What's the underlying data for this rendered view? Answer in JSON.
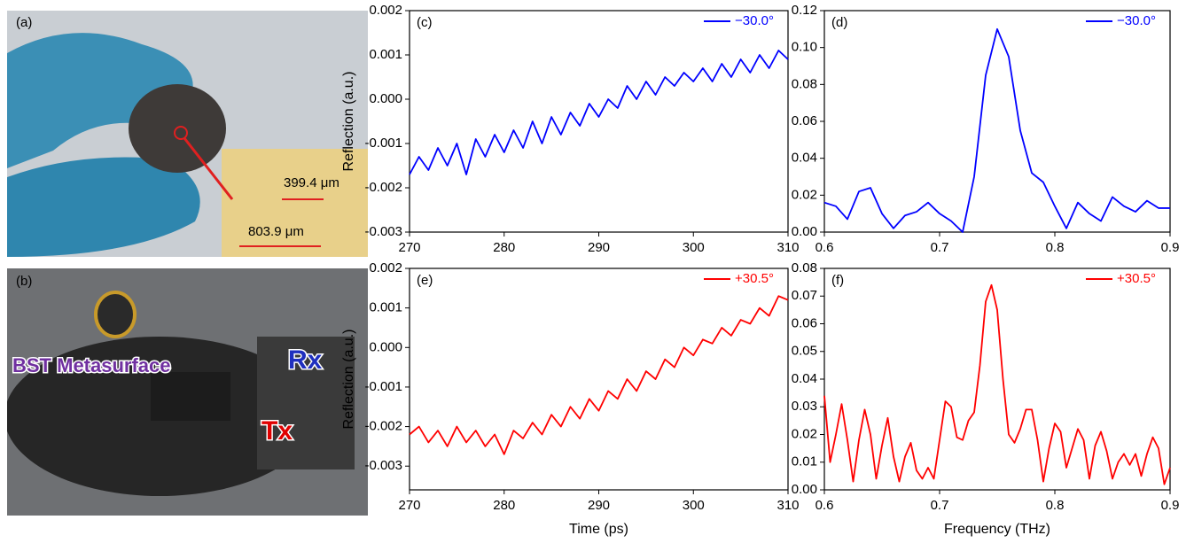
{
  "photos": {
    "a": {
      "label": "(a)",
      "scale_short": "399.4 μm",
      "scale_long": "803.9 μm"
    },
    "b": {
      "label": "(b)",
      "sample": "BST Metasurface",
      "receiver": "Rx",
      "transmitter": "Tx"
    }
  },
  "chart_data": [
    {
      "type": "line",
      "label": "(c)",
      "ylabel": "Reflection (a.u.)",
      "x": [
        270,
        271,
        272,
        273,
        274,
        275,
        276,
        277,
        278,
        279,
        280,
        281,
        282,
        283,
        284,
        285,
        286,
        287,
        288,
        289,
        290,
        291,
        292,
        293,
        294,
        295,
        296,
        297,
        298,
        299,
        300,
        301,
        302,
        303,
        304,
        305,
        306,
        307,
        308,
        309,
        310
      ],
      "series": [
        {
          "name": "−30.0°",
          "color": "#0000ff",
          "values": [
            -0.0017,
            -0.0013,
            -0.0016,
            -0.0011,
            -0.0015,
            -0.001,
            -0.0017,
            -0.0009,
            -0.0013,
            -0.0008,
            -0.0012,
            -0.0007,
            -0.0011,
            -0.0005,
            -0.001,
            -0.0004,
            -0.0008,
            -0.0003,
            -0.0006,
            -0.0001,
            -0.0004,
            0.0,
            -0.0002,
            0.0003,
            0.0,
            0.0004,
            0.0001,
            0.0005,
            0.0003,
            0.0006,
            0.0004,
            0.0007,
            0.0004,
            0.0008,
            0.0005,
            0.0009,
            0.0006,
            0.001,
            0.0007,
            0.0011,
            0.0009
          ]
        }
      ],
      "xlim": [
        270,
        310
      ],
      "ylim": [
        -0.003,
        0.002
      ],
      "xticks": [
        270,
        280,
        290,
        300,
        310
      ],
      "yticks": [
        -0.003,
        -0.002,
        -0.001,
        {
          "value": 0,
          "label": "0.000"
        },
        0.001,
        0.002
      ],
      "legend": "upper right"
    },
    {
      "type": "line",
      "label": "(d)",
      "x": [
        0.6,
        0.61,
        0.62,
        0.63,
        0.64,
        0.65,
        0.66,
        0.67,
        0.68,
        0.69,
        0.7,
        0.71,
        0.72,
        0.73,
        0.74,
        0.75,
        0.76,
        0.77,
        0.78,
        0.79,
        0.8,
        0.81,
        0.82,
        0.83,
        0.84,
        0.85,
        0.86,
        0.87,
        0.88,
        0.89,
        0.9
      ],
      "series": [
        {
          "name": "−30.0°",
          "color": "#0000ff",
          "values": [
            0.016,
            0.014,
            0.007,
            0.022,
            0.024,
            0.01,
            0.002,
            0.009,
            0.011,
            0.016,
            0.01,
            0.006,
            0.0,
            0.03,
            0.085,
            0.11,
            0.095,
            0.055,
            0.032,
            0.027,
            0.014,
            0.002,
            0.016,
            0.01,
            0.006,
            0.019,
            0.014,
            0.011,
            0.017,
            0.013,
            0.013
          ]
        }
      ],
      "xlim": [
        0.6,
        0.9
      ],
      "ylim": [
        0,
        0.12
      ],
      "xticks": [
        0.6,
        0.7,
        0.8,
        0.9
      ],
      "yticks": [
        {
          "value": 0,
          "label": "0.00"
        },
        0.02,
        0.04,
        0.06,
        0.08,
        {
          "value": 0.1,
          "label": "0.10"
        },
        0.12
      ],
      "legend": "upper right"
    },
    {
      "type": "line",
      "label": "(e)",
      "xlabel": "Time (ps)",
      "ylabel": "Reflection (a.u.)",
      "x": [
        270,
        271,
        272,
        273,
        274,
        275,
        276,
        277,
        278,
        279,
        280,
        281,
        282,
        283,
        284,
        285,
        286,
        287,
        288,
        289,
        290,
        291,
        292,
        293,
        294,
        295,
        296,
        297,
        298,
        299,
        300,
        301,
        302,
        303,
        304,
        305,
        306,
        307,
        308,
        309,
        310
      ],
      "series": [
        {
          "name": "+30.5°",
          "color": "#ff0000",
          "values": [
            -0.0022,
            -0.002,
            -0.0024,
            -0.0021,
            -0.0025,
            -0.002,
            -0.0024,
            -0.0021,
            -0.0025,
            -0.0022,
            -0.0027,
            -0.0021,
            -0.0023,
            -0.0019,
            -0.0022,
            -0.0017,
            -0.002,
            -0.0015,
            -0.0018,
            -0.0013,
            -0.0016,
            -0.0011,
            -0.0013,
            -0.0008,
            -0.0011,
            -0.0006,
            -0.0008,
            -0.0003,
            -0.0005,
            0.0,
            -0.0002,
            0.0002,
            0.0001,
            0.0005,
            0.0003,
            0.0007,
            0.0006,
            0.001,
            0.0008,
            0.0013,
            0.0012
          ]
        }
      ],
      "xlim": [
        270,
        310
      ],
      "ylim": [
        -0.0036,
        0.002
      ],
      "xticks": [
        270,
        280,
        290,
        300,
        310
      ],
      "yticks": [
        -0.003,
        -0.002,
        -0.001,
        {
          "value": 0,
          "label": "0.000"
        },
        0.001,
        0.002
      ],
      "legend": "upper right"
    },
    {
      "type": "line",
      "label": "(f)",
      "xlabel": "Frequency (THz)",
      "x": [
        0.6,
        0.605,
        0.61,
        0.615,
        0.62,
        0.625,
        0.63,
        0.635,
        0.64,
        0.645,
        0.65,
        0.655,
        0.66,
        0.665,
        0.67,
        0.675,
        0.68,
        0.685,
        0.69,
        0.695,
        0.7,
        0.705,
        0.71,
        0.715,
        0.72,
        0.725,
        0.73,
        0.735,
        0.74,
        0.745,
        0.75,
        0.755,
        0.76,
        0.765,
        0.77,
        0.775,
        0.78,
        0.785,
        0.79,
        0.795,
        0.8,
        0.805,
        0.81,
        0.815,
        0.82,
        0.825,
        0.83,
        0.835,
        0.84,
        0.845,
        0.85,
        0.855,
        0.86,
        0.865,
        0.87,
        0.875,
        0.88,
        0.885,
        0.89,
        0.895,
        0.9
      ],
      "series": [
        {
          "name": "+30.5°",
          "color": "#ff0000",
          "values": [
            0.034,
            0.01,
            0.02,
            0.031,
            0.018,
            0.003,
            0.018,
            0.029,
            0.02,
            0.004,
            0.016,
            0.026,
            0.012,
            0.003,
            0.012,
            0.017,
            0.007,
            0.004,
            0.008,
            0.004,
            0.018,
            0.032,
            0.03,
            0.019,
            0.018,
            0.025,
            0.028,
            0.045,
            0.068,
            0.074,
            0.065,
            0.04,
            0.02,
            0.017,
            0.022,
            0.029,
            0.029,
            0.018,
            0.003,
            0.015,
            0.024,
            0.021,
            0.008,
            0.015,
            0.022,
            0.018,
            0.004,
            0.016,
            0.021,
            0.014,
            0.004,
            0.01,
            0.013,
            0.009,
            0.013,
            0.005,
            0.013,
            0.019,
            0.015,
            0.002,
            0.008
          ]
        }
      ],
      "xlim": [
        0.6,
        0.9
      ],
      "ylim": [
        0,
        0.08
      ],
      "xticks": [
        0.6,
        0.7,
        0.8,
        0.9
      ],
      "yticks": [
        {
          "value": 0,
          "label": "0.00"
        },
        0.01,
        0.02,
        0.03,
        0.04,
        0.05,
        0.06,
        0.07,
        0.08
      ],
      "legend": "upper right"
    }
  ]
}
